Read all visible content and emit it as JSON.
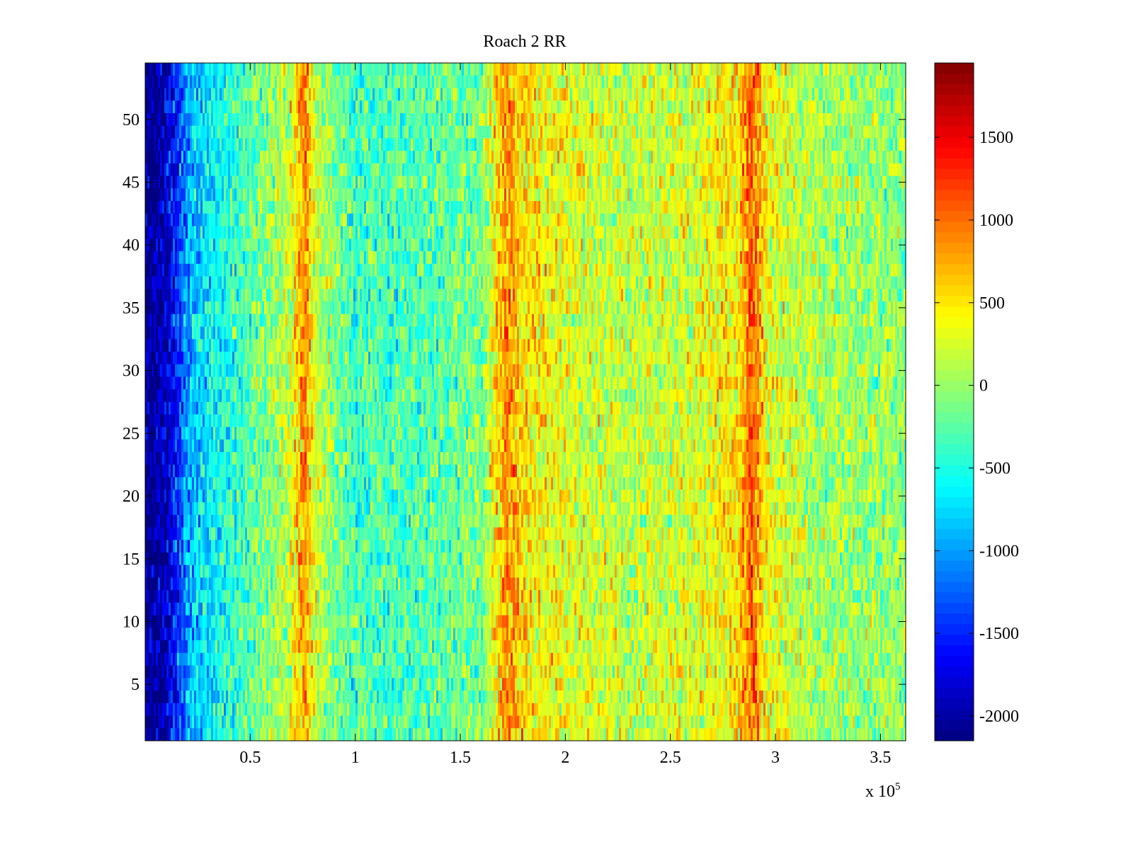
{
  "chart_data": {
    "type": "heatmap",
    "title": "Roach 2 RR",
    "xlabel": "",
    "ylabel": "",
    "colormap": "jet",
    "xlim": [
      0,
      362000
    ],
    "ylim": [
      0.5,
      54.5
    ],
    "rows": 54,
    "x_ticks": [
      {
        "value": 50000,
        "label": "0.5"
      },
      {
        "value": 100000,
        "label": "1"
      },
      {
        "value": 150000,
        "label": "1.5"
      },
      {
        "value": 200000,
        "label": "2"
      },
      {
        "value": 250000,
        "label": "2.5"
      },
      {
        "value": 300000,
        "label": "3"
      },
      {
        "value": 350000,
        "label": "3.5"
      }
    ],
    "x_exponent": {
      "base": "x 10",
      "power": "5"
    },
    "y_ticks": [
      {
        "value": 5,
        "label": "5"
      },
      {
        "value": 10,
        "label": "10"
      },
      {
        "value": 15,
        "label": "15"
      },
      {
        "value": 20,
        "label": "20"
      },
      {
        "value": 25,
        "label": "25"
      },
      {
        "value": 30,
        "label": "30"
      },
      {
        "value": 35,
        "label": "35"
      },
      {
        "value": 40,
        "label": "40"
      },
      {
        "value": 45,
        "label": "45"
      },
      {
        "value": 50,
        "label": "50"
      }
    ],
    "colorbar": {
      "clim": [
        -2150,
        1950
      ],
      "ticks": [
        {
          "value": 1500,
          "label": "1500"
        },
        {
          "value": 1000,
          "label": "1000"
        },
        {
          "value": 500,
          "label": "500"
        },
        {
          "value": 0,
          "label": "0"
        },
        {
          "value": -500,
          "label": "-500"
        },
        {
          "value": -1000,
          "label": "-1000"
        },
        {
          "value": -1500,
          "label": "-1500"
        },
        {
          "value": -2000,
          "label": "-2000"
        }
      ]
    },
    "column_profile": [
      {
        "x": 0,
        "value": -2100
      },
      {
        "x": 8000,
        "value": -2000
      },
      {
        "x": 15000,
        "value": -1500
      },
      {
        "x": 22000,
        "value": -900
      },
      {
        "x": 35000,
        "value": -550
      },
      {
        "x": 55000,
        "value": -150
      },
      {
        "x": 68000,
        "value": 150
      },
      {
        "x": 76000,
        "value": 850
      },
      {
        "x": 82000,
        "value": 100
      },
      {
        "x": 100000,
        "value": -350
      },
      {
        "x": 130000,
        "value": -300
      },
      {
        "x": 160000,
        "value": -150
      },
      {
        "x": 172000,
        "value": 900
      },
      {
        "x": 180000,
        "value": 500
      },
      {
        "x": 200000,
        "value": 300
      },
      {
        "x": 230000,
        "value": 150
      },
      {
        "x": 260000,
        "value": 250
      },
      {
        "x": 282000,
        "value": 500
      },
      {
        "x": 289000,
        "value": 1100
      },
      {
        "x": 296000,
        "value": 350
      },
      {
        "x": 320000,
        "value": 50
      },
      {
        "x": 362000,
        "value": -50
      }
    ],
    "noise_amplitude": 550,
    "seed": 20160417
  }
}
